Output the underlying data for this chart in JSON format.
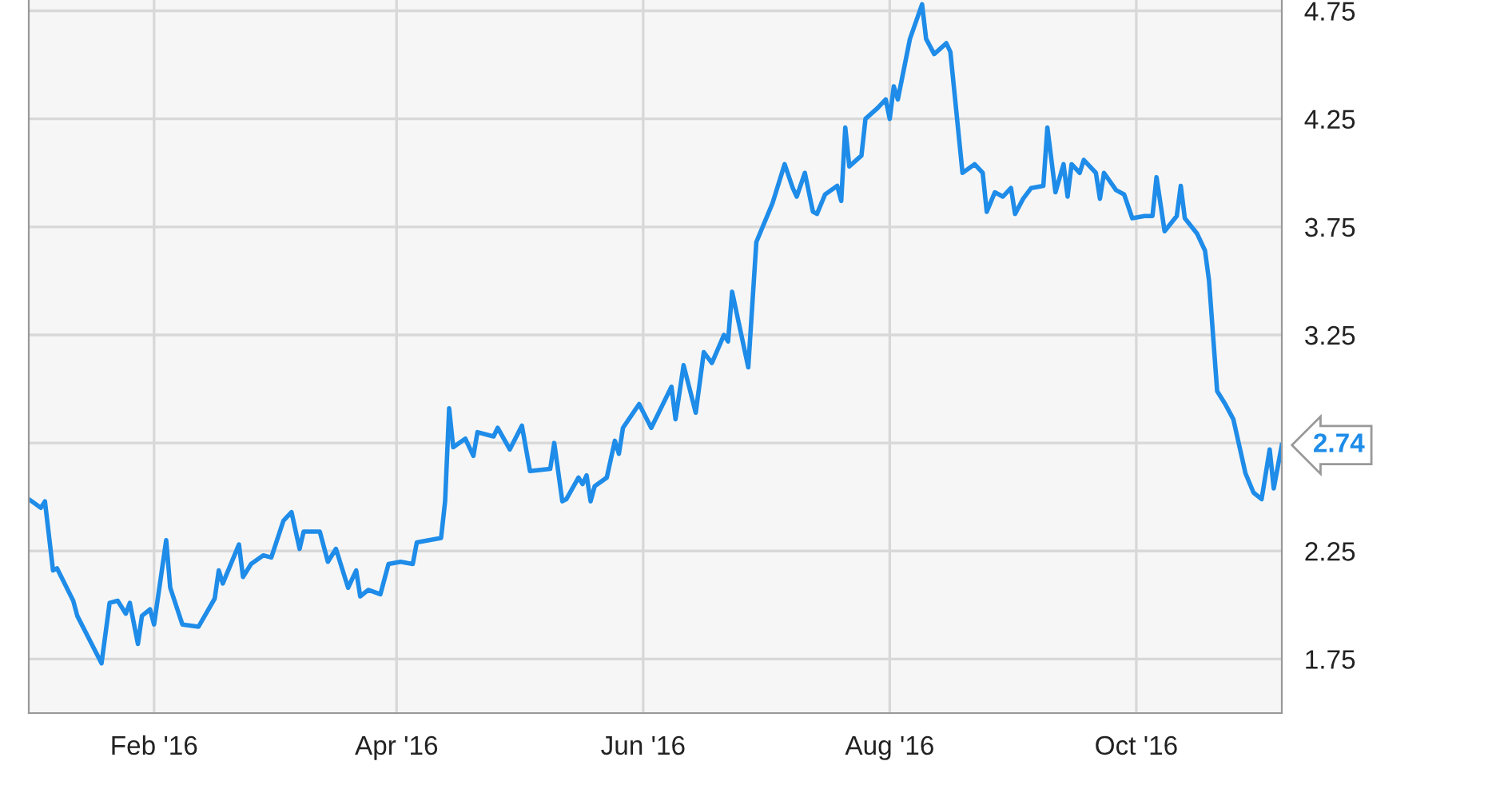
{
  "chart_data": {
    "type": "line",
    "x": [
      "2016-01-01",
      "2016-01-04",
      "2016-01-05",
      "2016-01-07",
      "2016-01-08",
      "2016-01-12",
      "2016-01-13",
      "2016-01-16",
      "2016-01-19",
      "2016-01-21",
      "2016-01-23",
      "2016-01-25",
      "2016-01-26",
      "2016-01-28",
      "2016-01-29",
      "2016-01-31",
      "2016-02-01",
      "2016-02-04",
      "2016-02-05",
      "2016-02-08",
      "2016-02-12",
      "2016-02-16",
      "2016-02-17",
      "2016-02-18",
      "2016-02-22",
      "2016-02-23",
      "2016-02-25",
      "2016-02-28",
      "2016-03-01",
      "2016-03-04",
      "2016-03-06",
      "2016-03-08",
      "2016-03-09",
      "2016-03-13",
      "2016-03-15",
      "2016-03-17",
      "2016-03-20",
      "2016-03-22",
      "2016-03-23",
      "2016-03-25",
      "2016-03-28",
      "2016-03-30",
      "2016-04-02",
      "2016-04-05",
      "2016-04-06",
      "2016-04-12",
      "2016-04-13",
      "2016-04-14",
      "2016-04-15",
      "2016-04-18",
      "2016-04-20",
      "2016-04-21",
      "2016-04-25",
      "2016-04-26",
      "2016-04-29",
      "2016-05-02",
      "2016-05-04",
      "2016-05-09",
      "2016-05-10",
      "2016-05-12",
      "2016-05-13",
      "2016-05-16",
      "2016-05-17",
      "2016-05-18",
      "2016-05-19",
      "2016-05-20",
      "2016-05-23",
      "2016-05-25",
      "2016-05-26",
      "2016-05-27",
      "2016-05-31",
      "2016-06-03",
      "2016-06-08",
      "2016-06-09",
      "2016-06-11",
      "2016-06-14",
      "2016-06-16",
      "2016-06-18",
      "2016-06-21",
      "2016-06-22",
      "2016-06-23",
      "2016-06-27",
      "2016-06-29",
      "2016-07-03",
      "2016-07-06",
      "2016-07-08",
      "2016-07-09",
      "2016-07-11",
      "2016-07-13",
      "2016-07-14",
      "2016-07-16",
      "2016-07-19",
      "2016-07-20",
      "2016-07-21",
      "2016-07-22",
      "2016-07-25",
      "2016-07-26",
      "2016-07-29",
      "2016-07-31",
      "2016-08-01",
      "2016-08-02",
      "2016-08-03",
      "2016-08-06",
      "2016-08-09",
      "2016-08-10",
      "2016-08-12",
      "2016-08-15",
      "2016-08-16",
      "2016-08-19",
      "2016-08-22",
      "2016-08-24",
      "2016-08-25",
      "2016-08-27",
      "2016-08-29",
      "2016-08-31",
      "2016-09-01",
      "2016-09-03",
      "2016-09-05",
      "2016-09-08",
      "2016-09-09",
      "2016-09-11",
      "2016-09-13",
      "2016-09-14",
      "2016-09-15",
      "2016-09-17",
      "2016-09-18",
      "2016-09-21",
      "2016-09-22",
      "2016-09-23",
      "2016-09-26",
      "2016-09-28",
      "2016-09-30",
      "2016-10-03",
      "2016-10-05",
      "2016-10-06",
      "2016-10-08",
      "2016-10-11",
      "2016-10-12",
      "2016-10-13",
      "2016-10-16",
      "2016-10-18",
      "2016-10-19",
      "2016-10-21",
      "2016-10-23",
      "2016-10-25",
      "2016-10-28",
      "2016-10-30",
      "2016-11-01",
      "2016-11-03",
      "2016-11-04",
      "2016-11-06"
    ],
    "series": [
      {
        "color": "#1e8ce8",
        "values": [
          2.49,
          2.45,
          2.48,
          2.16,
          2.17,
          2.02,
          1.95,
          1.84,
          1.73,
          2.01,
          2.02,
          1.96,
          2.01,
          1.82,
          1.95,
          1.98,
          1.91,
          2.3,
          2.08,
          1.91,
          1.9,
          2.03,
          2.16,
          2.1,
          2.28,
          2.13,
          2.19,
          2.23,
          2.22,
          2.39,
          2.43,
          2.26,
          2.34,
          2.34,
          2.2,
          2.26,
          2.08,
          2.16,
          2.04,
          2.07,
          2.05,
          2.19,
          2.2,
          2.19,
          2.29,
          2.31,
          2.48,
          2.91,
          2.73,
          2.77,
          2.69,
          2.8,
          2.78,
          2.82,
          2.72,
          2.83,
          2.62,
          2.63,
          2.75,
          2.48,
          2.49,
          2.59,
          2.56,
          2.6,
          2.48,
          2.55,
          2.59,
          2.76,
          2.7,
          2.82,
          2.93,
          2.82,
          3.01,
          2.86,
          3.11,
          2.89,
          3.17,
          3.12,
          3.25,
          3.22,
          3.45,
          3.1,
          3.68,
          3.86,
          4.04,
          3.93,
          3.89,
          4.0,
          3.82,
          3.81,
          3.9,
          3.94,
          3.87,
          4.21,
          4.03,
          4.08,
          4.25,
          4.3,
          4.34,
          4.25,
          4.4,
          4.34,
          4.62,
          4.78,
          4.62,
          4.55,
          4.6,
          4.56,
          4.0,
          4.04,
          4.0,
          3.82,
          3.91,
          3.89,
          3.93,
          3.81,
          3.88,
          3.93,
          3.94,
          4.21,
          3.91,
          4.04,
          3.89,
          4.04,
          4.0,
          4.06,
          4.0,
          3.88,
          4.0,
          3.92,
          3.9,
          3.79,
          3.8,
          3.8,
          3.98,
          3.73,
          3.8,
          3.94,
          3.79,
          3.72,
          3.64,
          3.5,
          2.99,
          2.93,
          2.86,
          2.61,
          2.52,
          2.49,
          2.72,
          2.54,
          2.74
        ]
      }
    ],
    "xlim": [
      "2016-01-01",
      "2016-11-06"
    ],
    "xticks": [
      {
        "value": "2016-02-01",
        "label": "Feb '16"
      },
      {
        "value": "2016-04-01",
        "label": "Apr '16"
      },
      {
        "value": "2016-06-01",
        "label": "Jun '16"
      },
      {
        "value": "2016-08-01",
        "label": "Aug '16"
      },
      {
        "value": "2016-10-01",
        "label": "Oct '16"
      }
    ],
    "ylim": [
      1.5,
      4.8
    ],
    "yticks": [
      1.75,
      2.25,
      {
        "value": 2.75,
        "label": null
      },
      3.25,
      3.75,
      4.25,
      4.75
    ],
    "grid": true,
    "annotations": [
      {
        "text": "2.74",
        "x": "2016-11-06",
        "y": 2.74
      }
    ]
  }
}
